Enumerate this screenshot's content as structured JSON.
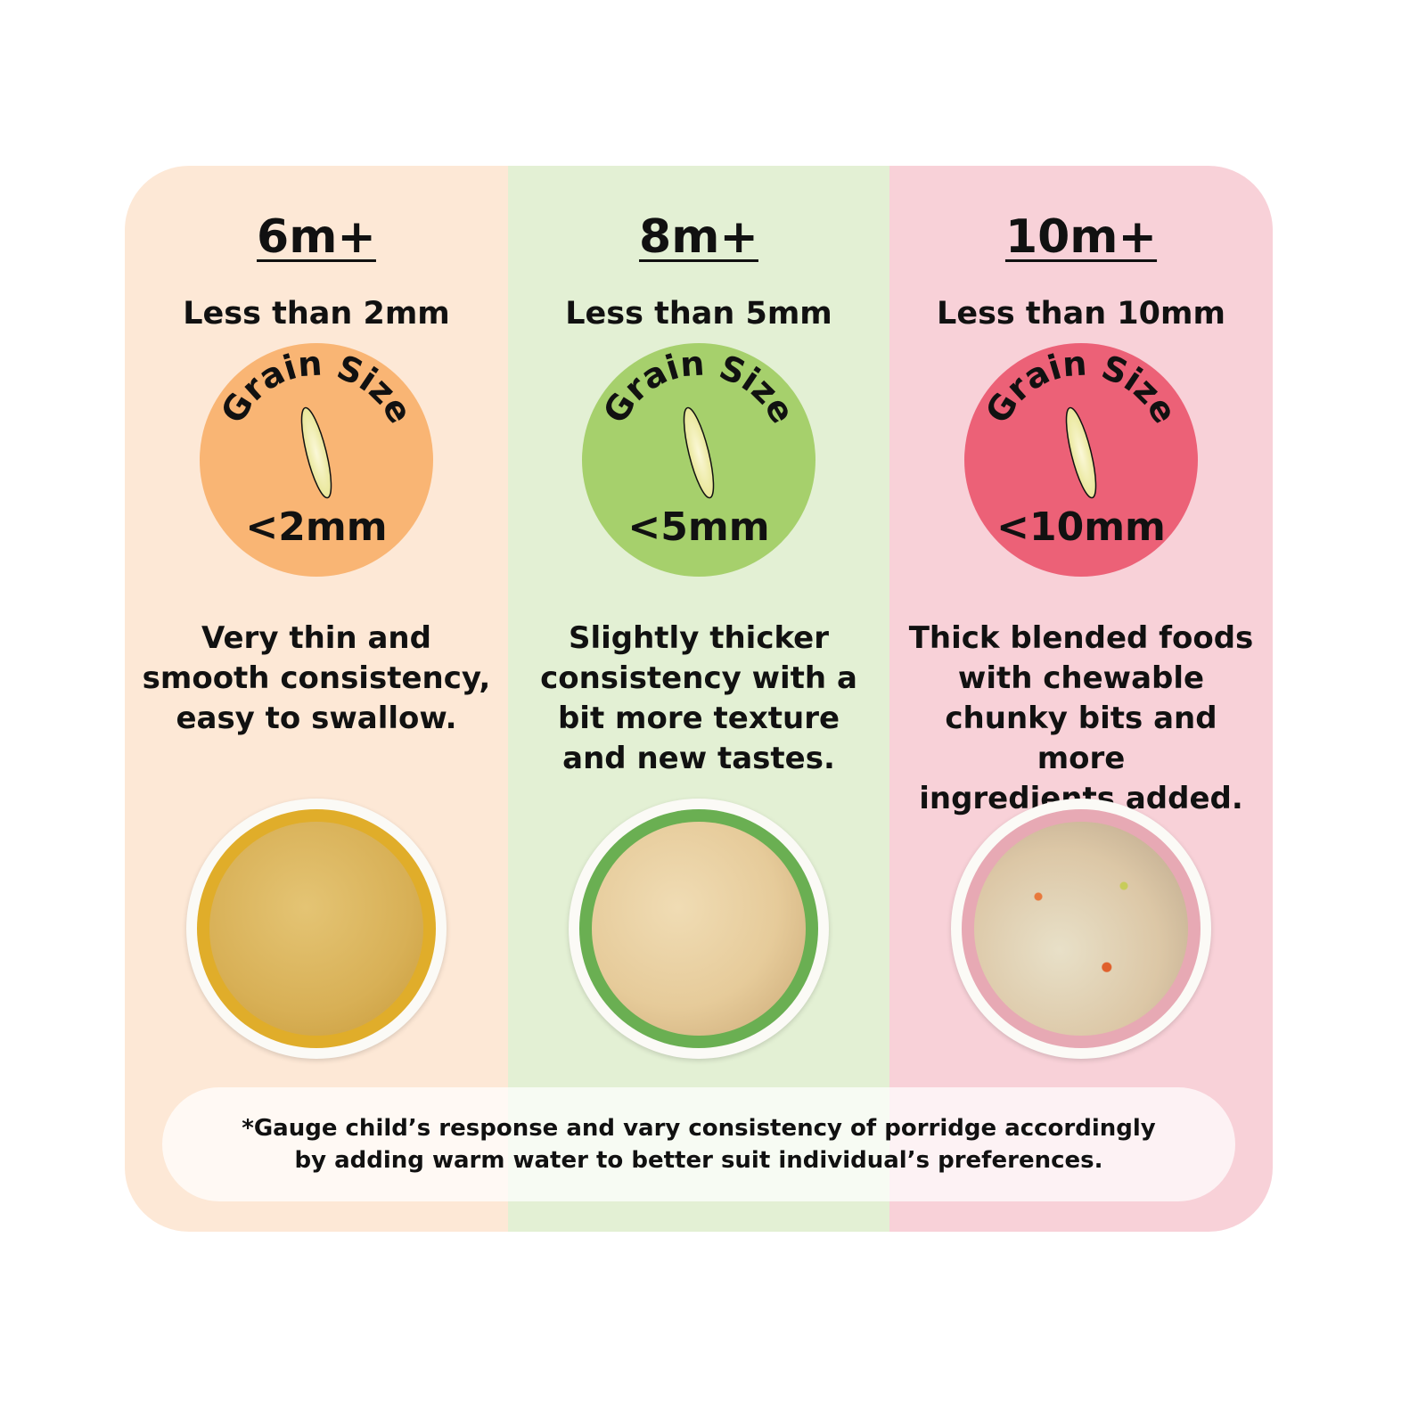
{
  "columns": [
    {
      "age": "6m+",
      "size_text": "Less than 2mm",
      "badge_label": "Grain Size",
      "badge_value": "<2mm",
      "description": [
        "Very thin and",
        "smooth consistency,",
        "easy to swallow."
      ],
      "badge_color": "#f9b574",
      "bowl_rim": "#e0ad2a",
      "food_color": "#d8b056"
    },
    {
      "age": "8m+",
      "size_text": "Less than 5mm",
      "badge_label": "Grain Size",
      "badge_value": "<5mm",
      "description": [
        "Slightly thicker",
        "consistency with a",
        "bit more texture",
        "and new tastes."
      ],
      "badge_color": "#a6d06c",
      "bowl_rim": "#6aaf52",
      "food_color": "#e6cb9a"
    },
    {
      "age": "10m+",
      "size_text": "Less than 10mm",
      "badge_label": "Grain Size",
      "badge_value": "<10mm",
      "description": [
        "Thick blended foods",
        "with chewable",
        "chunky bits and more",
        "ingredients added."
      ],
      "badge_color": "#ec6177",
      "bowl_rim": "#e7a9b4",
      "food_color": "#dcc7a6"
    }
  ],
  "note": [
    "*Gauge child’s response and vary consistency of porridge accordingly",
    "by adding warm water to better suit individual’s preferences."
  ]
}
